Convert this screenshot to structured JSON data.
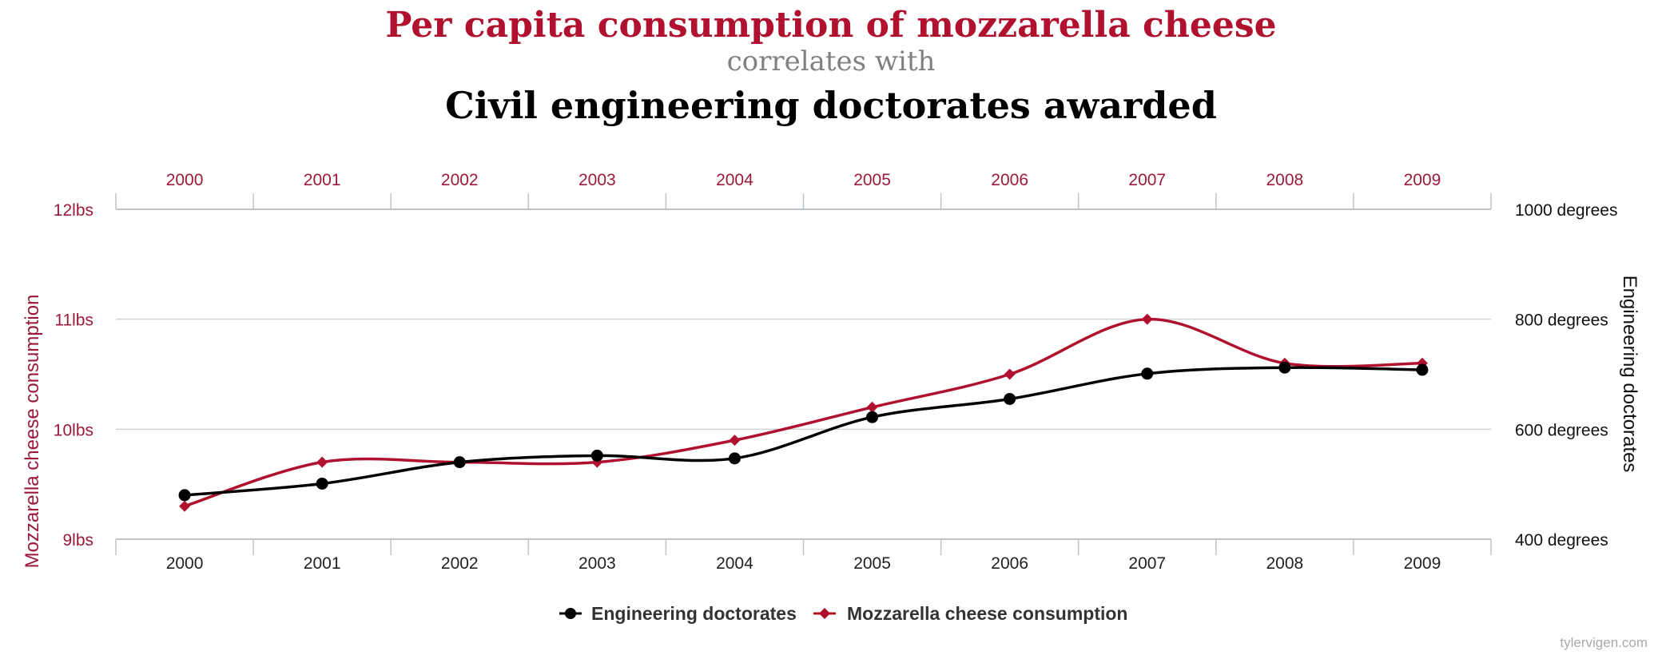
{
  "chart_data": {
    "type": "line",
    "title": "Per capita consumption of mozzarella cheese",
    "subtitle": "correlates with",
    "title_secondary": "Civil engineering doctorates awarded",
    "x": [
      "2000",
      "2001",
      "2002",
      "2003",
      "2004",
      "2005",
      "2006",
      "2007",
      "2008",
      "2009"
    ],
    "left_axis": {
      "label": "Mozzarella cheese consumption",
      "range": [
        9,
        12
      ],
      "ticks": [
        9,
        10,
        11,
        12
      ],
      "tick_labels": [
        "9lbs",
        "10lbs",
        "11lbs",
        "12lbs"
      ]
    },
    "right_axis": {
      "label": "Engineering doctorates",
      "range": [
        400,
        1000
      ],
      "ticks": [
        400,
        600,
        800,
        1000
      ],
      "tick_labels": [
        "400 degrees",
        "600 degrees",
        "800 degrees",
        "1000 degrees"
      ]
    },
    "series": [
      {
        "name": "Engineering doctorates",
        "axis": "right",
        "color": "#000000",
        "marker": "circle",
        "values": [
          480,
          501,
          540,
          552,
          547,
          622,
          655,
          701,
          712,
          708
        ]
      },
      {
        "name": "Mozzarella cheese consumption",
        "axis": "left",
        "color": "#b0112e",
        "marker": "diamond",
        "values": [
          9.3,
          9.7,
          9.7,
          9.7,
          9.9,
          10.2,
          10.5,
          11.0,
          10.6,
          10.6
        ]
      }
    ],
    "grid": true,
    "legend": "bottom-center"
  },
  "credit": "tylervigen.com"
}
